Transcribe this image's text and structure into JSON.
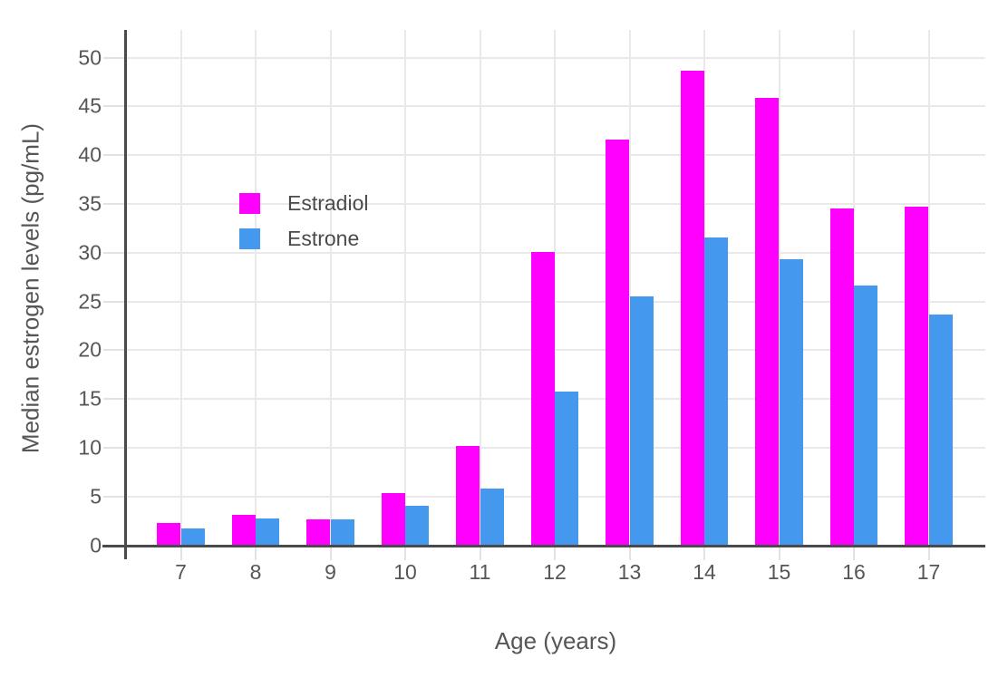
{
  "chart_data": {
    "type": "bar",
    "title": "",
    "xlabel": "Age (years)",
    "ylabel": "Median estrogen levels (pg/mL)",
    "categories": [
      7,
      8,
      9,
      10,
      11,
      12,
      13,
      14,
      15,
      16,
      17
    ],
    "series": [
      {
        "name": "Estradiol",
        "color": "#FF00FF",
        "values": [
          2.2,
          3.1,
          2.6,
          5.3,
          10.1,
          30.0,
          41.6,
          48.6,
          45.8,
          34.5,
          34.7
        ]
      },
      {
        "name": "Estrone",
        "color": "#4499EE",
        "values": [
          1.7,
          2.7,
          2.6,
          4.0,
          5.8,
          15.7,
          25.5,
          31.5,
          29.3,
          26.6,
          23.6
        ]
      }
    ],
    "ylim": [
      0,
      52.8
    ],
    "yticks": [
      0,
      5,
      10,
      15,
      20,
      25,
      30,
      35,
      40,
      45,
      50
    ],
    "grid": true,
    "legend_position": "inside-upper-left",
    "axis_color": "#4a4a4a",
    "grid_color": "#e9e9e9",
    "tick_label_color": "#565656"
  }
}
